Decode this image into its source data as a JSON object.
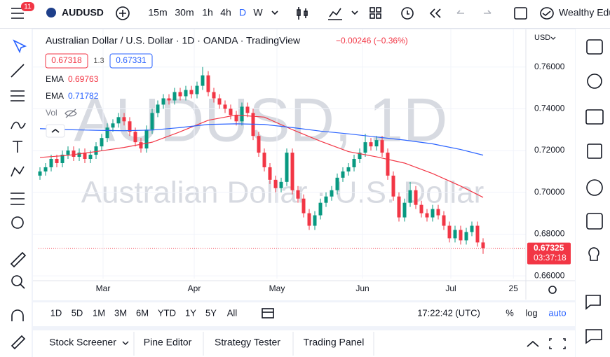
{
  "toolbar": {
    "badge": "11",
    "symbol": "AUDUSD",
    "intervals": [
      "15m",
      "30m",
      "1h",
      "4h",
      "D",
      "W"
    ],
    "account": "Wealthy Edu"
  },
  "chart_data": {
    "type": "candlestick",
    "title": "Australian Dollar / U.S. Dollar · 1D · OANDA · TradingView",
    "change": "−0.00246 (−0.36%)",
    "bid": "0.67318",
    "spread": "1.3",
    "ask": "0.67331",
    "watermark": "AUDUSD, 1D",
    "watermark_name": "Australian Dollar · U.S. Dollar",
    "currency": "USD",
    "volume_label": "Vol",
    "up_color": "#089981",
    "down_color": "#f23645",
    "open": [
      0.708,
      0.71,
      0.712,
      0.716,
      0.714,
      0.718,
      0.72,
      0.717,
      0.719,
      0.716,
      0.718,
      0.722,
      0.726,
      0.731,
      0.733,
      0.736,
      0.734,
      0.729,
      0.724,
      0.721,
      0.73,
      0.738,
      0.742,
      0.745,
      0.744,
      0.748,
      0.746,
      0.749,
      0.747,
      0.751,
      0.756,
      0.748,
      0.745,
      0.742,
      0.74,
      0.737,
      0.734,
      0.741,
      0.738,
      0.727,
      0.719,
      0.712,
      0.706,
      0.702,
      0.705,
      0.719,
      0.701,
      0.697,
      0.69,
      0.684,
      0.689,
      0.695,
      0.698,
      0.701,
      0.707,
      0.71,
      0.712,
      0.716,
      0.719,
      0.724,
      0.722,
      0.725,
      0.719,
      0.708,
      0.698,
      0.688,
      0.695,
      0.701,
      0.694,
      0.69,
      0.688,
      0.692,
      0.689,
      0.684,
      0.678,
      0.682,
      0.677,
      0.681,
      0.684,
      0.676
    ],
    "high": [
      0.712,
      0.714,
      0.718,
      0.718,
      0.72,
      0.722,
      0.722,
      0.721,
      0.721,
      0.72,
      0.724,
      0.728,
      0.733,
      0.735,
      0.738,
      0.738,
      0.736,
      0.731,
      0.726,
      0.732,
      0.74,
      0.744,
      0.747,
      0.747,
      0.75,
      0.75,
      0.751,
      0.751,
      0.753,
      0.76,
      0.758,
      0.75,
      0.747,
      0.744,
      0.742,
      0.739,
      0.743,
      0.743,
      0.74,
      0.729,
      0.721,
      0.714,
      0.708,
      0.707,
      0.721,
      0.721,
      0.703,
      0.699,
      0.692,
      0.691,
      0.697,
      0.7,
      0.703,
      0.709,
      0.712,
      0.714,
      0.718,
      0.721,
      0.728,
      0.726,
      0.727,
      0.727,
      0.721,
      0.71,
      0.7,
      0.697,
      0.705,
      0.703,
      0.696,
      0.692,
      0.694,
      0.694,
      0.691,
      0.686,
      0.684,
      0.684,
      0.683,
      0.686,
      0.686,
      0.678
    ],
    "low": [
      0.706,
      0.708,
      0.71,
      0.712,
      0.712,
      0.716,
      0.715,
      0.715,
      0.714,
      0.714,
      0.716,
      0.72,
      0.724,
      0.729,
      0.731,
      0.732,
      0.727,
      0.722,
      0.719,
      0.719,
      0.728,
      0.736,
      0.74,
      0.742,
      0.742,
      0.744,
      0.744,
      0.745,
      0.745,
      0.749,
      0.746,
      0.743,
      0.74,
      0.738,
      0.735,
      0.732,
      0.732,
      0.736,
      0.725,
      0.717,
      0.71,
      0.704,
      0.7,
      0.7,
      0.703,
      0.699,
      0.695,
      0.688,
      0.682,
      0.682,
      0.687,
      0.693,
      0.696,
      0.699,
      0.705,
      0.708,
      0.71,
      0.714,
      0.717,
      0.72,
      0.72,
      0.717,
      0.706,
      0.696,
      0.686,
      0.686,
      0.693,
      0.692,
      0.688,
      0.686,
      0.686,
      0.687,
      0.682,
      0.676,
      0.676,
      0.675,
      0.675,
      0.679,
      0.674,
      0.6705
    ],
    "close": [
      0.71,
      0.712,
      0.716,
      0.714,
      0.718,
      0.72,
      0.717,
      0.719,
      0.716,
      0.718,
      0.722,
      0.726,
      0.731,
      0.733,
      0.736,
      0.734,
      0.729,
      0.724,
      0.721,
      0.73,
      0.738,
      0.742,
      0.745,
      0.744,
      0.748,
      0.746,
      0.749,
      0.747,
      0.751,
      0.756,
      0.748,
      0.745,
      0.742,
      0.74,
      0.737,
      0.734,
      0.741,
      0.738,
      0.727,
      0.719,
      0.712,
      0.706,
      0.702,
      0.705,
      0.719,
      0.701,
      0.697,
      0.69,
      0.684,
      0.689,
      0.695,
      0.698,
      0.701,
      0.707,
      0.71,
      0.712,
      0.716,
      0.719,
      0.724,
      0.722,
      0.725,
      0.719,
      0.708,
      0.698,
      0.688,
      0.695,
      0.701,
      0.694,
      0.69,
      0.688,
      0.692,
      0.689,
      0.684,
      0.678,
      0.682,
      0.677,
      0.681,
      0.684,
      0.676,
      0.6733
    ],
    "series": [
      {
        "name": "EMA",
        "color": "#f23645",
        "legend_value": "0.69763",
        "x": [
          0,
          5,
          10,
          15,
          20,
          25,
          30,
          35,
          40,
          45,
          50,
          55,
          60,
          65,
          70,
          75,
          79
        ],
        "values": [
          0.7167,
          0.7177,
          0.7195,
          0.7215,
          0.724,
          0.729,
          0.7345,
          0.737,
          0.736,
          0.73,
          0.7245,
          0.7195,
          0.717,
          0.714,
          0.709,
          0.703,
          0.6976
        ]
      },
      {
        "name": "EMA",
        "color": "#2962ff",
        "legend_value": "0.71782",
        "x": [
          0,
          5,
          10,
          15,
          20,
          25,
          30,
          35,
          40,
          45,
          50,
          55,
          60,
          65,
          70,
          75,
          79
        ],
        "values": [
          0.7305,
          0.73,
          0.7297,
          0.7295,
          0.7298,
          0.731,
          0.7325,
          0.7328,
          0.7325,
          0.731,
          0.7293,
          0.728,
          0.7265,
          0.725,
          0.7232,
          0.7205,
          0.7178
        ]
      }
    ],
    "ylim": [
      0.6587,
      0.778
    ],
    "yticks": [
      {
        "value": 0.66,
        "label": "0.66000"
      },
      {
        "value": 0.68,
        "label": "0.68000"
      },
      {
        "value": 0.7,
        "label": "0.70000"
      },
      {
        "value": 0.72,
        "label": "0.72000"
      },
      {
        "value": 0.74,
        "label": "0.74000"
      },
      {
        "value": 0.76,
        "label": "0.76000"
      }
    ],
    "xlim": [
      -0.25,
      86.625
    ],
    "xticks": [
      {
        "value": 11.25,
        "label": "Mar"
      },
      {
        "value": 27.5,
        "label": "Apr"
      },
      {
        "value": 42.25,
        "label": "May"
      },
      {
        "value": 57.5,
        "label": "Jun"
      },
      {
        "value": 73.25,
        "label": "Jul"
      },
      {
        "value": 84.4,
        "label": "25"
      }
    ],
    "last_price": {
      "value": 0.67325,
      "label": "0.67325"
    },
    "countdown": "03:37:18"
  },
  "bottom": {
    "ranges": [
      "1D",
      "5D",
      "1M",
      "3M",
      "6M",
      "YTD",
      "1Y",
      "5Y",
      "All"
    ],
    "time": "17:22:42 (UTC)",
    "percent": "%",
    "log": "log",
    "auto": "auto",
    "tabs": [
      "Stock Screener",
      "Pine Editor",
      "Strategy Tester",
      "Trading Panel"
    ]
  }
}
